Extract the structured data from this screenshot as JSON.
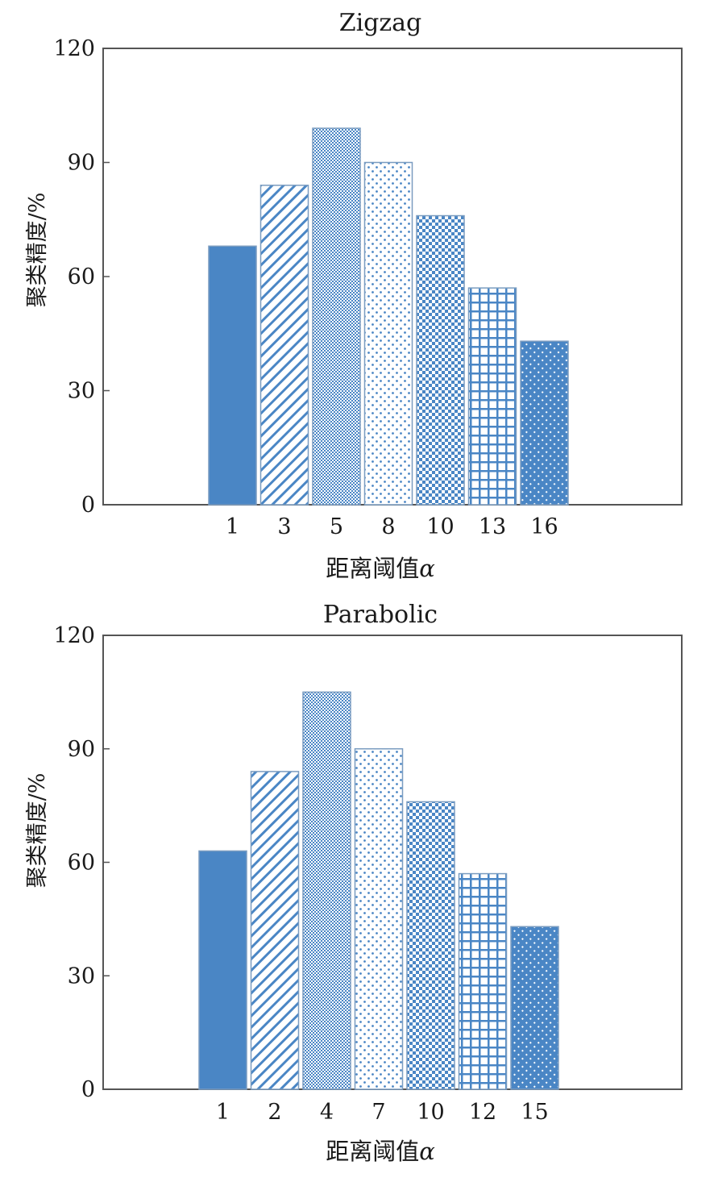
{
  "colors": {
    "bar": "#4a86c5",
    "axis": "#555555",
    "background": "#ffffff"
  },
  "chart_data": [
    {
      "type": "bar",
      "title": "Zigzag",
      "xlabel": "距离阈值",
      "xlabel_symbol": "α",
      "ylabel": "聚类精度/%",
      "ylim": [
        0,
        120
      ],
      "yticks": [
        0,
        30,
        60,
        90,
        120
      ],
      "grid": false,
      "categories": [
        "1",
        "3",
        "5",
        "8",
        "10",
        "13",
        "16"
      ],
      "values": [
        68,
        84,
        99,
        90,
        76,
        57,
        43
      ],
      "patterns": [
        "solid",
        "diagonal",
        "fine-dots",
        "sparse-dots",
        "checker",
        "grid",
        "crosshatch"
      ]
    },
    {
      "type": "bar",
      "title": "Parabolic",
      "xlabel": "距离阈值",
      "xlabel_symbol": "α",
      "ylabel": "聚类精度/%",
      "ylim": [
        0,
        120
      ],
      "yticks": [
        0,
        30,
        60,
        90,
        120
      ],
      "grid": false,
      "categories": [
        "1",
        "2",
        "4",
        "7",
        "10",
        "12",
        "15"
      ],
      "values": [
        63,
        84,
        105,
        90,
        76,
        57,
        43
      ],
      "patterns": [
        "solid",
        "diagonal",
        "fine-dots",
        "sparse-dots",
        "checker",
        "grid",
        "crosshatch"
      ]
    }
  ]
}
